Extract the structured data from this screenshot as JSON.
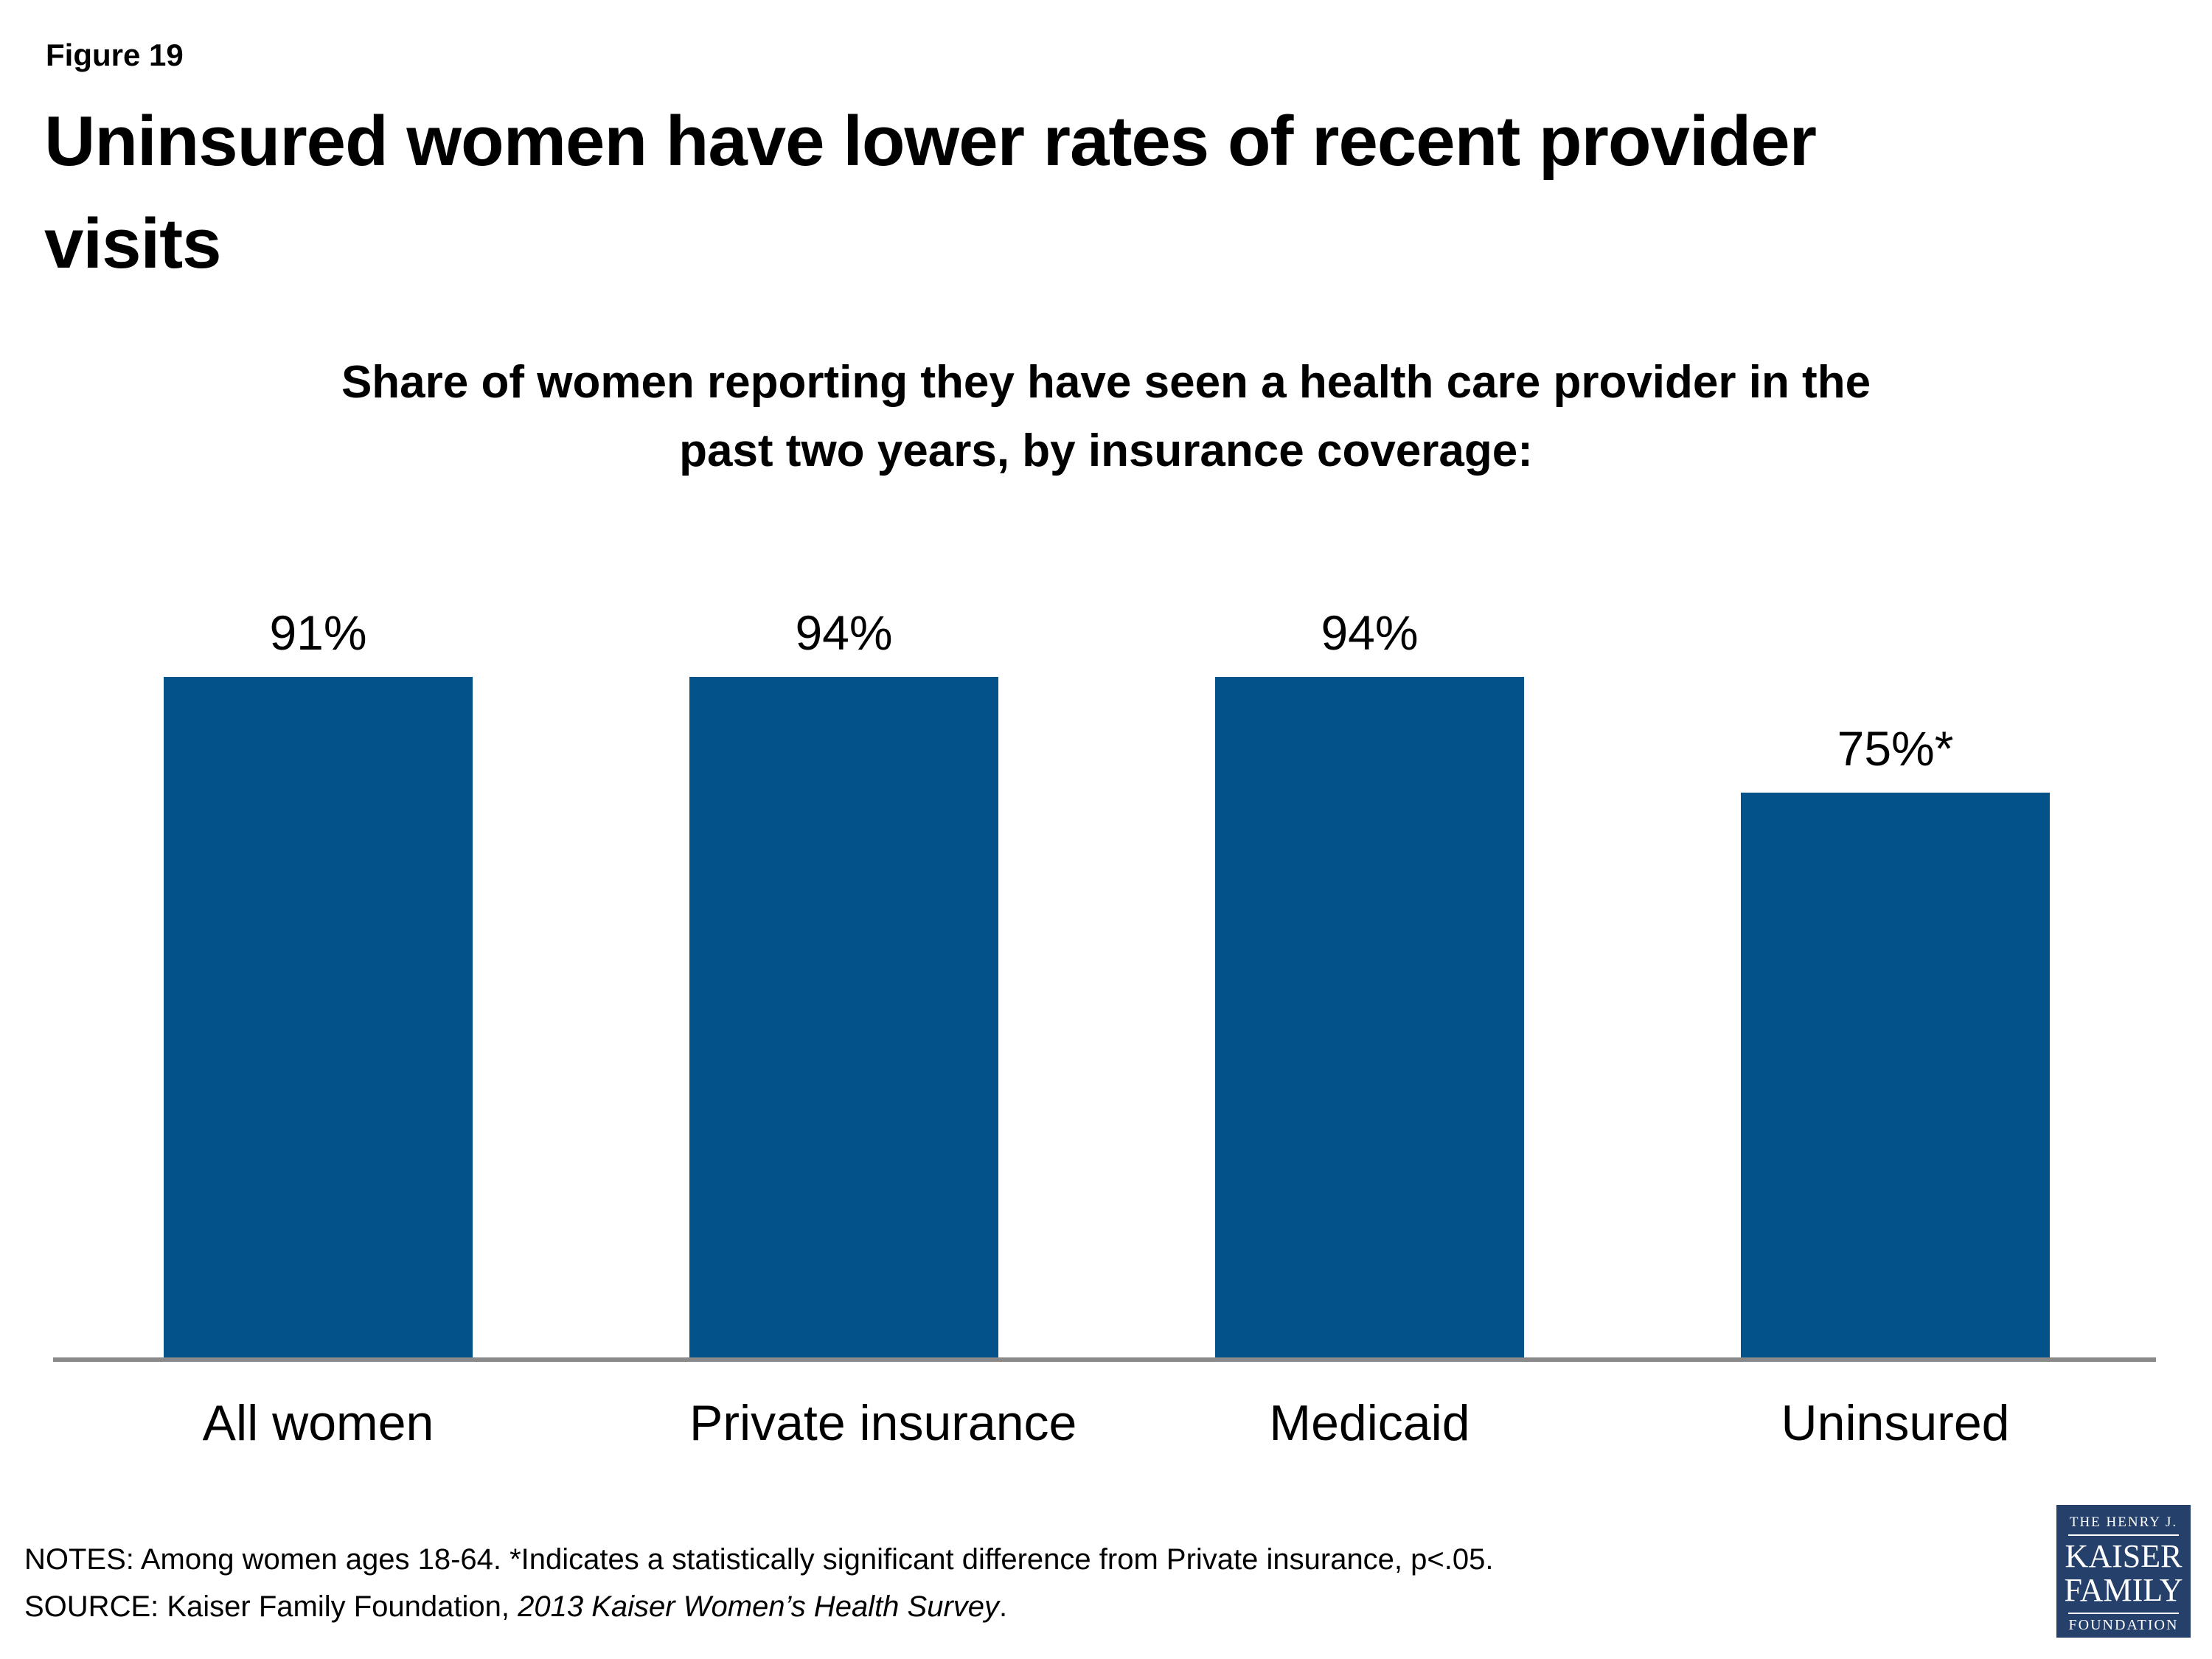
{
  "figure_label": "Figure 19",
  "title": {
    "line1": "Uninsured women have lower rates of recent provider",
    "line2": "visits"
  },
  "subtitle": {
    "line1": "Share of women reporting they have seen a health care provider in the",
    "line2": "past two years, by insurance coverage:"
  },
  "chart_data": {
    "type": "bar",
    "title": "Uninsured women have lower rates of recent provider visits",
    "subtitle": "Share of women reporting they have seen a health care provider in the past two years, by insurance coverage:",
    "categories": [
      "All women",
      "Private insurance",
      "Medicaid",
      "Uninsured"
    ],
    "values": [
      91,
      94,
      94,
      75
    ],
    "bar_labels": [
      "91%",
      "94%",
      "94%",
      "75%*"
    ],
    "xlabel": "",
    "ylabel": "",
    "ylim": [
      0,
      100
    ],
    "grid": false,
    "legend": "none",
    "bar_color": "#04528A"
  },
  "notes": {
    "line1": "NOTES: Among women ages 18-64. *Indicates a statistically significant difference from Private insurance, p<.05.",
    "source_prefix": "SOURCE: Kaiser Family Foundation, ",
    "source_italic": "2013 Kaiser Women’s Health Survey",
    "source_suffix": "."
  },
  "logo": {
    "line1": "THE HENRY J.",
    "line2": "KAISER",
    "line3": "FAMILY",
    "line4": "FOUNDATION"
  },
  "colors": {
    "bar": "#04528A",
    "axis_line": "#8A8A8A",
    "logo_background": "#24406B",
    "text": "#000000"
  }
}
